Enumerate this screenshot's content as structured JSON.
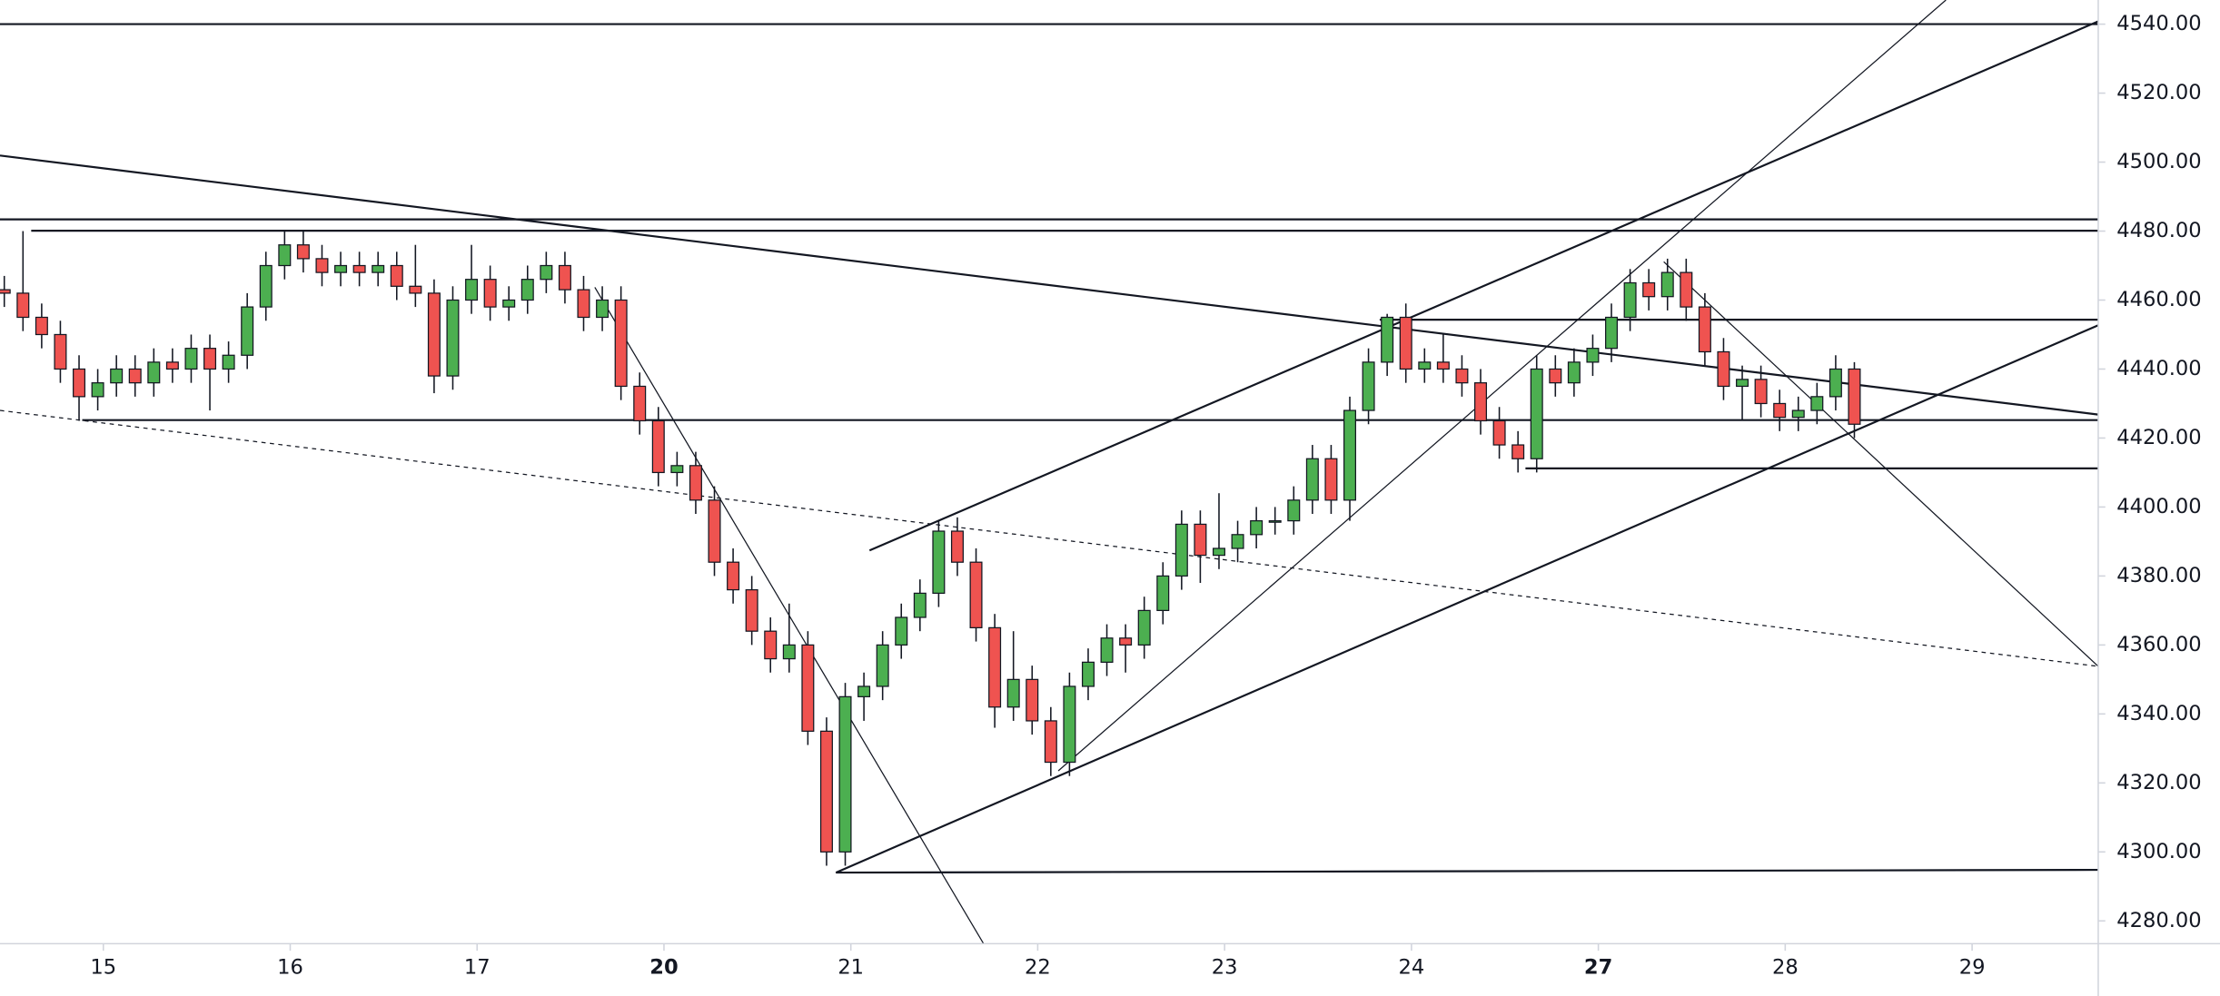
{
  "chart_data": {
    "type": "candlestick",
    "x": [
      0,
      1,
      2,
      3,
      4,
      5,
      6,
      7,
      8,
      9,
      10,
      11,
      12,
      13,
      14,
      15,
      16,
      17,
      18,
      19,
      20,
      21,
      22,
      23,
      24,
      25,
      26,
      27,
      28,
      29,
      30,
      31,
      32,
      33,
      34,
      35,
      36,
      37,
      38,
      39,
      40,
      41,
      42,
      43,
      44,
      45,
      46,
      47,
      48,
      49,
      50,
      51,
      52,
      53,
      54,
      55,
      56,
      57,
      58,
      59,
      60,
      61,
      62,
      63,
      64,
      65,
      66,
      67,
      68,
      69,
      70,
      71,
      72,
      73,
      74,
      75,
      76,
      77,
      78,
      79,
      80,
      81,
      82,
      83,
      84,
      85,
      86,
      87,
      88,
      89,
      90,
      91,
      92,
      93,
      94,
      95,
      96,
      97,
      98,
      99
    ],
    "open": [
      4463,
      4462,
      4455,
      4450,
      4440,
      4432,
      4436,
      4440,
      4436,
      4442,
      4440,
      4446,
      4440,
      4444,
      4458,
      4470,
      4476,
      4472,
      4468,
      4470,
      4468,
      4470,
      4464,
      4462,
      4438,
      4460,
      4466,
      4458,
      4460,
      4466,
      4470,
      4463,
      4455,
      4460,
      4435,
      4425,
      4410,
      4412,
      4402,
      4384,
      4376,
      4364,
      4356,
      4360,
      4335,
      4300,
      4345,
      4348,
      4360,
      4368,
      4375,
      4393,
      4384,
      4365,
      4342,
      4350,
      4338,
      4326,
      4348,
      4355,
      4362,
      4360,
      4370,
      4380,
      4395,
      4386,
      4388,
      4392,
      4396,
      4396,
      4402,
      4414,
      4402,
      4428,
      4442,
      4455,
      4440,
      4442,
      4440,
      4436,
      4425,
      4418,
      4414,
      4440,
      4436,
      4442,
      4446,
      4455,
      4465,
      4461,
      4468,
      4458,
      4445,
      4435,
      4437,
      4430,
      4426,
      4428,
      4432,
      4440
    ],
    "high": [
      4467,
      4480,
      4459,
      4454,
      4444,
      4440,
      4444,
      4444,
      4446,
      4446,
      4450,
      4450,
      4448,
      4462,
      4474,
      4480,
      4480,
      4476,
      4474,
      4474,
      4474,
      4474,
      4476,
      4466,
      4464,
      4476,
      4470,
      4464,
      4470,
      4474,
      4474,
      4467,
      4464,
      4464,
      4439,
      4429,
      4416,
      4416,
      4406,
      4388,
      4380,
      4368,
      4372,
      4364,
      4339,
      4349,
      4352,
      4364,
      4372,
      4379,
      4396,
      4397,
      4388,
      4369,
      4364,
      4354,
      4342,
      4352,
      4359,
      4366,
      4366,
      4374,
      4384,
      4399,
      4399,
      4404,
      4396,
      4400,
      4400,
      4406,
      4418,
      4418,
      4432,
      4446,
      4456,
      4459,
      4446,
      4450,
      4444,
      4440,
      4429,
      4422,
      4444,
      4444,
      4446,
      4450,
      4459,
      4469,
      4469,
      4472,
      4472,
      4462,
      4449,
      4441,
      4441,
      4434,
      4432,
      4436,
      4444,
      4442
    ],
    "low": [
      4458,
      4451,
      4446,
      4436,
      4425,
      4428,
      4432,
      4432,
      4432,
      4436,
      4436,
      4428,
      4436,
      4440,
      4454,
      4466,
      4468,
      4464,
      4464,
      4464,
      4464,
      4460,
      4458,
      4433,
      4434,
      4456,
      4454,
      4454,
      4456,
      4462,
      4459,
      4451,
      4451,
      4431,
      4421,
      4406,
      4406,
      4398,
      4380,
      4372,
      4360,
      4352,
      4352,
      4331,
      4296,
      4296,
      4338,
      4344,
      4356,
      4364,
      4371,
      4380,
      4361,
      4336,
      4338,
      4334,
      4322,
      4322,
      4344,
      4351,
      4352,
      4356,
      4366,
      4376,
      4378,
      4382,
      4384,
      4388,
      4392,
      4392,
      4398,
      4398,
      4396,
      4424,
      4438,
      4436,
      4436,
      4436,
      4432,
      4421,
      4414,
      4410,
      4410,
      4432,
      4432,
      4438,
      4442,
      4451,
      4457,
      4457,
      4454,
      4441,
      4431,
      4425,
      4426,
      4422,
      4422,
      4424,
      4428,
      4420
    ],
    "close": [
      4462,
      4455,
      4450,
      4440,
      4432,
      4436,
      4440,
      4436,
      4442,
      4440,
      4446,
      4440,
      4444,
      4458,
      4470,
      4476,
      4472,
      4468,
      4470,
      4468,
      4470,
      4464,
      4462,
      4438,
      4460,
      4466,
      4458,
      4460,
      4466,
      4470,
      4463,
      4455,
      4460,
      4435,
      4425,
      4410,
      4412,
      4402,
      4384,
      4376,
      4364,
      4356,
      4360,
      4335,
      4300,
      4345,
      4348,
      4360,
      4368,
      4375,
      4393,
      4384,
      4365,
      4342,
      4350,
      4338,
      4326,
      4348,
      4355,
      4362,
      4360,
      4370,
      4380,
      4395,
      4386,
      4388,
      4392,
      4396,
      4396,
      4402,
      4414,
      4402,
      4428,
      4442,
      4455,
      4440,
      4442,
      4440,
      4436,
      4425,
      4418,
      4414,
      4440,
      4436,
      4442,
      4446,
      4455,
      4465,
      4461,
      4468,
      4458,
      4445,
      4435,
      4437,
      4430,
      4426,
      4428,
      4432,
      4440,
      4424
    ],
    "up_color": "#4caf50",
    "down_color": "#ef5350",
    "xlim": [
      -0.23,
      112.05
    ],
    "ylim": [
      4273.4,
      4547
    ],
    "xticks": [
      {
        "value": 5.3,
        "label": "15"
      },
      {
        "value": 15.3,
        "label": "16"
      },
      {
        "value": 25.3,
        "label": "17"
      },
      {
        "value": 35.3,
        "label": "20"
      },
      {
        "value": 45.3,
        "label": "21"
      },
      {
        "value": 55.3,
        "label": "22"
      },
      {
        "value": 65.3,
        "label": "23"
      },
      {
        "value": 75.3,
        "label": "24"
      },
      {
        "value": 85.3,
        "label": "27"
      },
      {
        "value": 95.3,
        "label": "28"
      },
      {
        "value": 105.3,
        "label": "29"
      }
    ],
    "bold_xticks": [
      3,
      8
    ],
    "yticks": [
      {
        "value": 4280,
        "label": "4280.00"
      },
      {
        "value": 4300,
        "label": "4300.00"
      },
      {
        "value": 4320,
        "label": "4320.00"
      },
      {
        "value": 4340,
        "label": "4340.00"
      },
      {
        "value": 4360,
        "label": "4360.00"
      },
      {
        "value": 4380,
        "label": "4380.00"
      },
      {
        "value": 4400,
        "label": "4400.00"
      },
      {
        "value": 4420,
        "label": "4420.00"
      },
      {
        "value": 4440,
        "label": "4440.00"
      },
      {
        "value": 4460,
        "label": "4460.00"
      },
      {
        "value": 4480,
        "label": "4480.00"
      },
      {
        "value": 4500,
        "label": "4500.00"
      },
      {
        "value": 4520,
        "label": "4520.00"
      },
      {
        "value": 4540,
        "label": "4540.00"
      }
    ],
    "grid": false,
    "drawings": [
      {
        "x": [
          -0.23,
          112.05
        ],
        "y": [
          4540,
          4540
        ],
        "style": "thick"
      },
      {
        "x": [
          -0.23,
          112.05
        ],
        "y": [
          4483.4,
          4483.4
        ],
        "style": "thick"
      },
      {
        "x": [
          1.44,
          112.05
        ],
        "y": [
          4480.1,
          4480.1
        ],
        "style": "thick"
      },
      {
        "x": [
          -0.23,
          112.05
        ],
        "y": [
          4501.9,
          4426.8
        ],
        "style": "thick"
      },
      {
        "x": [
          4.17,
          112.05
        ],
        "y": [
          4425.2,
          4425.2
        ],
        "style": "thick"
      },
      {
        "x": [
          -0.23,
          112.05
        ],
        "y": [
          4428.0,
          4353.8
        ],
        "style": "dashed"
      },
      {
        "x": [
          31.6,
          52.4
        ],
        "y": [
          4463.7,
          4273.4
        ],
        "style": "thin"
      },
      {
        "x": [
          46.3,
          112.05
        ],
        "y": [
          4387.4,
          4540.8
        ],
        "style": "thick"
      },
      {
        "x": [
          44.5,
          112.05
        ],
        "y": [
          4294.0,
          4452.7
        ],
        "style": "thick"
      },
      {
        "x": [
          44.5,
          112.05
        ],
        "y": [
          4294.0,
          4294.8
        ],
        "style": "thick"
      },
      {
        "x": [
          56.4,
          103.9
        ],
        "y": [
          4323.5,
          4547
        ],
        "style": "thin"
      },
      {
        "x": [
          88.8,
          112.05
        ],
        "y": [
          4471.1,
          4353.8
        ],
        "style": "thin"
      },
      {
        "x": [
          73.6,
          112.05
        ],
        "y": [
          4454.3,
          4454.3
        ],
        "style": "thick"
      },
      {
        "x": [
          81.4,
          112.05
        ],
        "y": [
          4411.2,
          4411.2
        ],
        "style": "thick"
      }
    ]
  }
}
